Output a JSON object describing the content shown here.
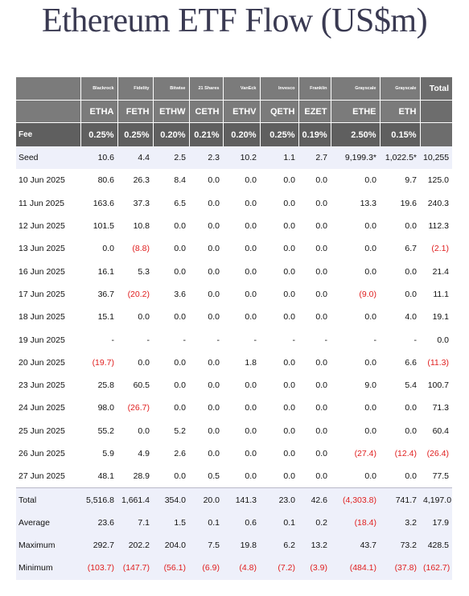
{
  "title": "Ethereum ETF Flow (US$m)",
  "colors": {
    "header": "#7b7b7b",
    "negative": "#e02020",
    "shade": "#eef0fa"
  },
  "table": {
    "issuers": [
      "Blackrock",
      "Fidelity",
      "Bitwise",
      "21 Shares",
      "VanEck",
      "Invesco",
      "Franklin",
      "Grayscale",
      "Grayscale",
      "Total"
    ],
    "tickers": [
      "ETHA",
      "FETH",
      "ETHW",
      "CETH",
      "ETHV",
      "QETH",
      "EZET",
      "ETHE",
      "ETH",
      ""
    ],
    "fee_label": "Fee",
    "fees": [
      "0.25%",
      "0.25%",
      "0.20%",
      "0.21%",
      "0.20%",
      "0.25%",
      "0.19%",
      "2.50%",
      "0.15%",
      ""
    ],
    "rows": [
      {
        "label": "Seed",
        "values": [
          "10.6",
          "4.4",
          "2.5",
          "2.3",
          "10.2",
          "1.1",
          "2.7",
          "9,199.3*",
          "1,022.5*",
          "10,255"
        ]
      },
      {
        "label": "10 Jun 2025",
        "values": [
          "80.6",
          "26.3",
          "8.4",
          "0.0",
          "0.0",
          "0.0",
          "0.0",
          "0.0",
          "9.7",
          "125.0"
        ]
      },
      {
        "label": "11 Jun 2025",
        "values": [
          "163.6",
          "37.3",
          "6.5",
          "0.0",
          "0.0",
          "0.0",
          "0.0",
          "13.3",
          "19.6",
          "240.3"
        ]
      },
      {
        "label": "12 Jun 2025",
        "values": [
          "101.5",
          "10.8",
          "0.0",
          "0.0",
          "0.0",
          "0.0",
          "0.0",
          "0.0",
          "0.0",
          "112.3"
        ]
      },
      {
        "label": "13 Jun 2025",
        "values": [
          "0.0",
          "(8.8)",
          "0.0",
          "0.0",
          "0.0",
          "0.0",
          "0.0",
          "0.0",
          "6.7",
          "(2.1)"
        ]
      },
      {
        "label": "16 Jun 2025",
        "values": [
          "16.1",
          "5.3",
          "0.0",
          "0.0",
          "0.0",
          "0.0",
          "0.0",
          "0.0",
          "0.0",
          "21.4"
        ]
      },
      {
        "label": "17 Jun 2025",
        "values": [
          "36.7",
          "(20.2)",
          "3.6",
          "0.0",
          "0.0",
          "0.0",
          "0.0",
          "(9.0)",
          "0.0",
          "11.1"
        ]
      },
      {
        "label": "18 Jun 2025",
        "values": [
          "15.1",
          "0.0",
          "0.0",
          "0.0",
          "0.0",
          "0.0",
          "0.0",
          "0.0",
          "4.0",
          "19.1"
        ]
      },
      {
        "label": "19 Jun 2025",
        "values": [
          "-",
          "-",
          "-",
          "-",
          "-",
          "-",
          "-",
          "-",
          "-",
          "0.0"
        ]
      },
      {
        "label": "20 Jun 2025",
        "values": [
          "(19.7)",
          "0.0",
          "0.0",
          "0.0",
          "1.8",
          "0.0",
          "0.0",
          "0.0",
          "6.6",
          "(11.3)"
        ]
      },
      {
        "label": "23 Jun 2025",
        "values": [
          "25.8",
          "60.5",
          "0.0",
          "0.0",
          "0.0",
          "0.0",
          "0.0",
          "9.0",
          "5.4",
          "100.7"
        ]
      },
      {
        "label": "24 Jun 2025",
        "values": [
          "98.0",
          "(26.7)",
          "0.0",
          "0.0",
          "0.0",
          "0.0",
          "0.0",
          "0.0",
          "0.0",
          "71.3"
        ]
      },
      {
        "label": "25 Jun 2025",
        "values": [
          "55.2",
          "0.0",
          "5.2",
          "0.0",
          "0.0",
          "0.0",
          "0.0",
          "0.0",
          "0.0",
          "60.4"
        ]
      },
      {
        "label": "26 Jun 2025",
        "values": [
          "5.9",
          "4.9",
          "2.6",
          "0.0",
          "0.0",
          "0.0",
          "0.0",
          "(27.4)",
          "(12.4)",
          "(26.4)"
        ]
      },
      {
        "label": "27 Jun 2025",
        "values": [
          "48.1",
          "28.9",
          "0.0",
          "0.5",
          "0.0",
          "0.0",
          "0.0",
          "0.0",
          "0.0",
          "77.5"
        ]
      },
      {
        "label": "Total",
        "values": [
          "5,516.8",
          "1,661.4",
          "354.0",
          "20.0",
          "141.3",
          "23.0",
          "42.6",
          "(4,303.8)",
          "741.7",
          "4,197.0"
        ]
      },
      {
        "label": "Average",
        "values": [
          "23.6",
          "7.1",
          "1.5",
          "0.1",
          "0.6",
          "0.1",
          "0.2",
          "(18.4)",
          "3.2",
          "17.9"
        ]
      },
      {
        "label": "Maximum",
        "values": [
          "292.7",
          "202.2",
          "204.0",
          "7.5",
          "19.8",
          "6.2",
          "13.2",
          "43.7",
          "73.2",
          "428.5"
        ]
      },
      {
        "label": "Minimum",
        "values": [
          "(103.7)",
          "(147.7)",
          "(56.1)",
          "(6.9)",
          "(4.8)",
          "(7.2)",
          "(3.9)",
          "(484.1)",
          "(37.8)",
          "(162.7)"
        ]
      }
    ]
  }
}
